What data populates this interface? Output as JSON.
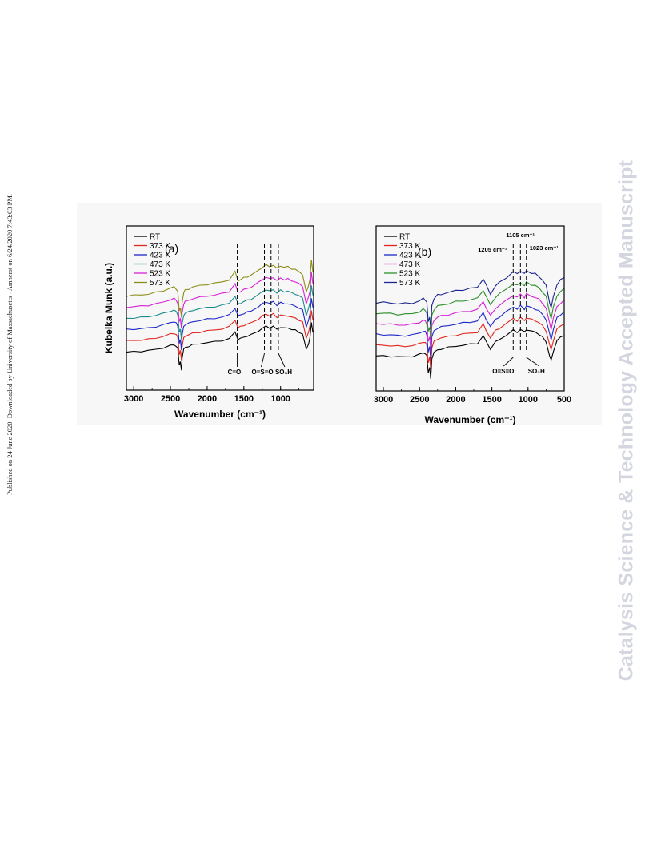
{
  "side_note": "Published on 24 June 2020. Downloaded by University of Massachusetts - Amherst on 6/24/2020 7:43:03 PM.",
  "watermark": "Catalysis Science & Technology Accepted Manuscript",
  "chart_data": [
    {
      "type": "line",
      "panel_label": "(a)",
      "xlabel": "Wavenumber (cm⁻¹)",
      "ylabel": "Kubelka Munk (a.u.)",
      "xlim": [
        3100,
        550
      ],
      "xticks": [
        3000,
        2500,
        2000,
        1500,
        1000
      ],
      "grid": false,
      "legend_position": "top-left",
      "series": [
        {
          "name": "RT",
          "color": "#000000",
          "offset": 0
        },
        {
          "name": "373 K",
          "color": "#e0261f",
          "offset": 1
        },
        {
          "name": "423 K",
          "color": "#1d29c9",
          "offset": 2
        },
        {
          "name": "473 K",
          "color": "#1c8a8a",
          "offset": 3
        },
        {
          "name": "523 K",
          "color": "#d621d6",
          "offset": 4
        },
        {
          "name": "573 K",
          "color": "#8c8c17",
          "offset": 5
        }
      ],
      "x": [
        3100,
        3000,
        2900,
        2800,
        2700,
        2600,
        2500,
        2450,
        2420,
        2400,
        2380,
        2365,
        2350,
        2340,
        2320,
        2300,
        2250,
        2200,
        2100,
        2000,
        1900,
        1800,
        1700,
        1620,
        1580,
        1550,
        1500,
        1450,
        1400,
        1300,
        1250,
        1200,
        1150,
        1100,
        1050,
        1000,
        950,
        900,
        850,
        800,
        750,
        700,
        650,
        620,
        600,
        580,
        560
      ],
      "y": [
        0.03,
        0.04,
        0.05,
        0.07,
        0.1,
        0.14,
        0.2,
        0.22,
        0.18,
        0.12,
        -0.3,
        -0.22,
        -0.45,
        -0.1,
        0.1,
        0.15,
        0.18,
        0.22,
        0.25,
        0.28,
        0.3,
        0.33,
        0.38,
        0.55,
        0.36,
        0.38,
        0.42,
        0.45,
        0.48,
        0.58,
        0.65,
        0.7,
        0.66,
        0.7,
        0.62,
        0.68,
        0.65,
        0.66,
        0.62,
        0.6,
        0.55,
        0.5,
        0.1,
        0.25,
        0.4,
        0.8,
        0.55
      ],
      "annotations": [
        {
          "text": "C=O",
          "x": 1590
        },
        {
          "text": "O=S=O",
          "x": 1220
        },
        {
          "text": "SO₃H",
          "x": 1030
        }
      ],
      "dashed_lines": [
        1590,
        1220,
        1130,
        1030
      ]
    },
    {
      "type": "line",
      "panel_label": "(b)",
      "xlabel": "Wavenumber (cm⁻¹)",
      "ylabel": "",
      "xlim": [
        3100,
        500
      ],
      "xticks": [
        3000,
        2500,
        2000,
        1500,
        1000,
        500
      ],
      "grid": false,
      "legend_position": "top-left",
      "series": [
        {
          "name": "RT",
          "color": "#000000",
          "offset": 0
        },
        {
          "name": "373 K",
          "color": "#e0261f",
          "offset": 1
        },
        {
          "name": "423 K",
          "color": "#1d29c9",
          "offset": 2
        },
        {
          "name": "473 K",
          "color": "#d621d6",
          "offset": 3
        },
        {
          "name": "523 K",
          "color": "#2a8f2a",
          "offset": 4
        },
        {
          "name": "573 K",
          "color": "#1b2390",
          "offset": 5
        }
      ],
      "x": [
        3100,
        3000,
        2900,
        2800,
        2700,
        2600,
        2500,
        2450,
        2420,
        2400,
        2380,
        2360,
        2345,
        2330,
        2300,
        2250,
        2200,
        2100,
        2000,
        1900,
        1800,
        1700,
        1620,
        1580,
        1520,
        1450,
        1400,
        1300,
        1205,
        1150,
        1105,
        1050,
        1023,
        950,
        900,
        850,
        800,
        750,
        700,
        680,
        650,
        600,
        550,
        500
      ],
      "y": [
        0.15,
        0.15,
        0.14,
        0.13,
        0.13,
        0.14,
        0.18,
        0.22,
        0.2,
        0.15,
        -0.2,
        -0.1,
        -0.35,
        0.1,
        0.22,
        0.28,
        0.3,
        0.33,
        0.36,
        0.38,
        0.4,
        0.42,
        0.58,
        0.46,
        0.3,
        0.45,
        0.5,
        0.6,
        0.7,
        0.66,
        0.72,
        0.66,
        0.72,
        0.68,
        0.66,
        0.62,
        0.55,
        0.45,
        0.15,
        0.05,
        0.25,
        0.48,
        0.55,
        0.6
      ],
      "annotations": [
        {
          "text": "1205 cm⁻¹",
          "x": 1205
        },
        {
          "text": "1105 cm⁻¹",
          "x": 1105
        },
        {
          "text": "1023 cm⁻¹",
          "x": 1023
        },
        {
          "text": "O=S=O",
          "x": 1205
        },
        {
          "text": "SO₃H",
          "x": 1023
        }
      ],
      "dashed_lines": [
        1205,
        1105,
        1023
      ]
    }
  ]
}
